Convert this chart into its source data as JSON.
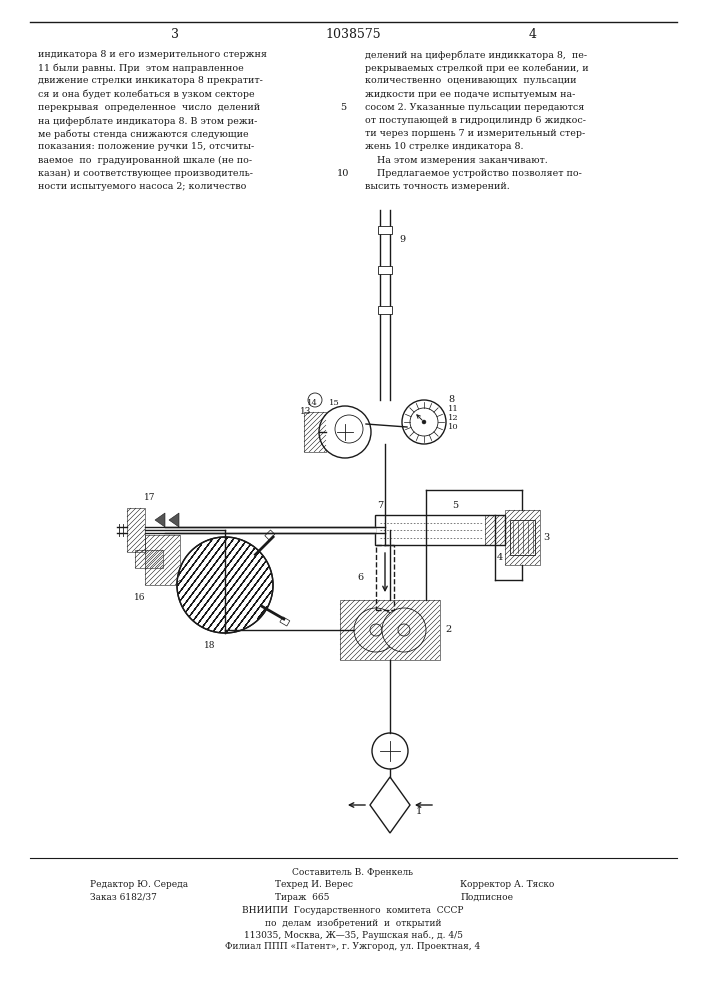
{
  "page_number_left": "3",
  "page_number_center": "1038575",
  "page_number_right": "4",
  "left_col_text": [
    "индикатора 8 и его измерительного стержня",
    "11 были равны. При  этом направленное",
    "движение стрелки инкикатора 8 прекратит-",
    "ся и она будет колебаться в узком секторе",
    "перекрывая  определенное  число  делений",
    "на циферблате индикатора 8. В этом режи-",
    "ме работы стенда снижаются следующие",
    "показания: положение ручки 15, отсчиты-",
    "ваемое  по  градуированной шкале (не по-",
    "казан) и соответствующее производитель-",
    "ности испытуемого насоса 2; количество"
  ],
  "right_col_text": [
    "делений на циферблате индиккатора 8,  пе-",
    "рекрываемых стрелкой при ее колебании, и",
    "количественно  оценивающих  пульсации",
    "жидкости при ее подаче испытуемым на-",
    "сосом 2. Указанные пульсации передаются",
    "от поступающей в гидроцилиндр 6 жидкос-",
    "ти через поршень 7 и измерительный стер-",
    "жень 10 стрелке индикатора 8.",
    "    На этом измерения заканчивают.",
    "    Предлагаемое устройство позволяет по-",
    "высить точность измерений."
  ],
  "footer_composer": "Составитель В. Френкель",
  "footer_editor": "Редактор Ю. Середа",
  "footer_techred": "Техред И. Верес",
  "footer_corrector": "Корректор А. Тяско",
  "footer_order": "Заказ 6182/37",
  "footer_tirazh": "Тираж  665",
  "footer_podpisnoe": "Подписное",
  "footer_vniipii": "ВНИИПИ  Государственного  комитета  СССР",
  "footer_po_delam": "по  делам  изобретений  и  открытий",
  "footer_address": "113035, Москва, Ж—35, Раушская наб., д. 4/5",
  "footer_filial": "Филиал ППП «Патент», г. Ужгород, ул. Проектная, 4",
  "bg_color": "#ffffff",
  "text_color": "#1a1a1a"
}
